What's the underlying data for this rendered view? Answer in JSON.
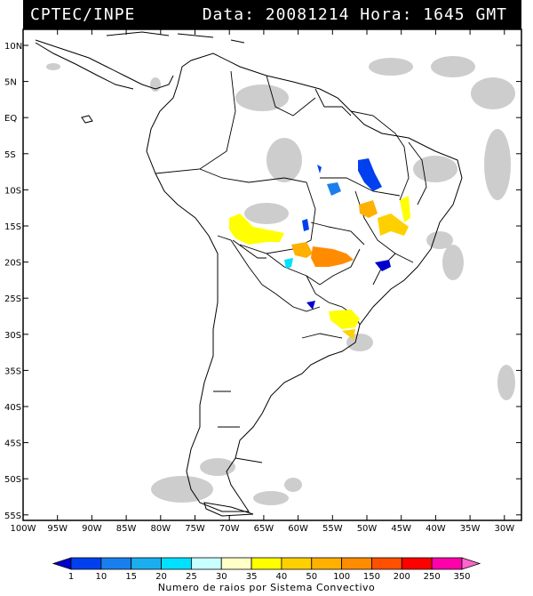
{
  "header": {
    "source": "CPTEC/INPE",
    "datetime": "Data: 20081214 Hora: 1645 GMT"
  },
  "map": {
    "lon_range": [
      -100,
      -28
    ],
    "lat_range": [
      -57,
      14
    ],
    "lat_labels": [
      "10N",
      "5N",
      "EQ",
      "5S",
      "10S",
      "15S",
      "20S",
      "25S",
      "30S",
      "35S",
      "40S",
      "45S",
      "50S",
      "55S"
    ],
    "lon_labels": [
      "100W",
      "95W",
      "90W",
      "85W",
      "80W",
      "75W",
      "70W",
      "65W",
      "60W",
      "55W",
      "50W",
      "45W",
      "40W",
      "35W",
      "30W"
    ]
  },
  "legend": {
    "label": "Numero de raios por Sistema Convectivo",
    "values": [
      "1",
      "10",
      "15",
      "20",
      "25",
      "30",
      "35",
      "40",
      "50",
      "100",
      "150",
      "200",
      "250",
      "350"
    ],
    "colors": [
      "#0000cc",
      "#0040ee",
      "#1a7fee",
      "#1aaeee",
      "#00e0ff",
      "#c8ffff",
      "#ffffc8",
      "#ffff00",
      "#ffd000",
      "#ffb000",
      "#ff8c00",
      "#ff5000",
      "#ff0000",
      "#ff00aa",
      "#ff66cc"
    ]
  }
}
